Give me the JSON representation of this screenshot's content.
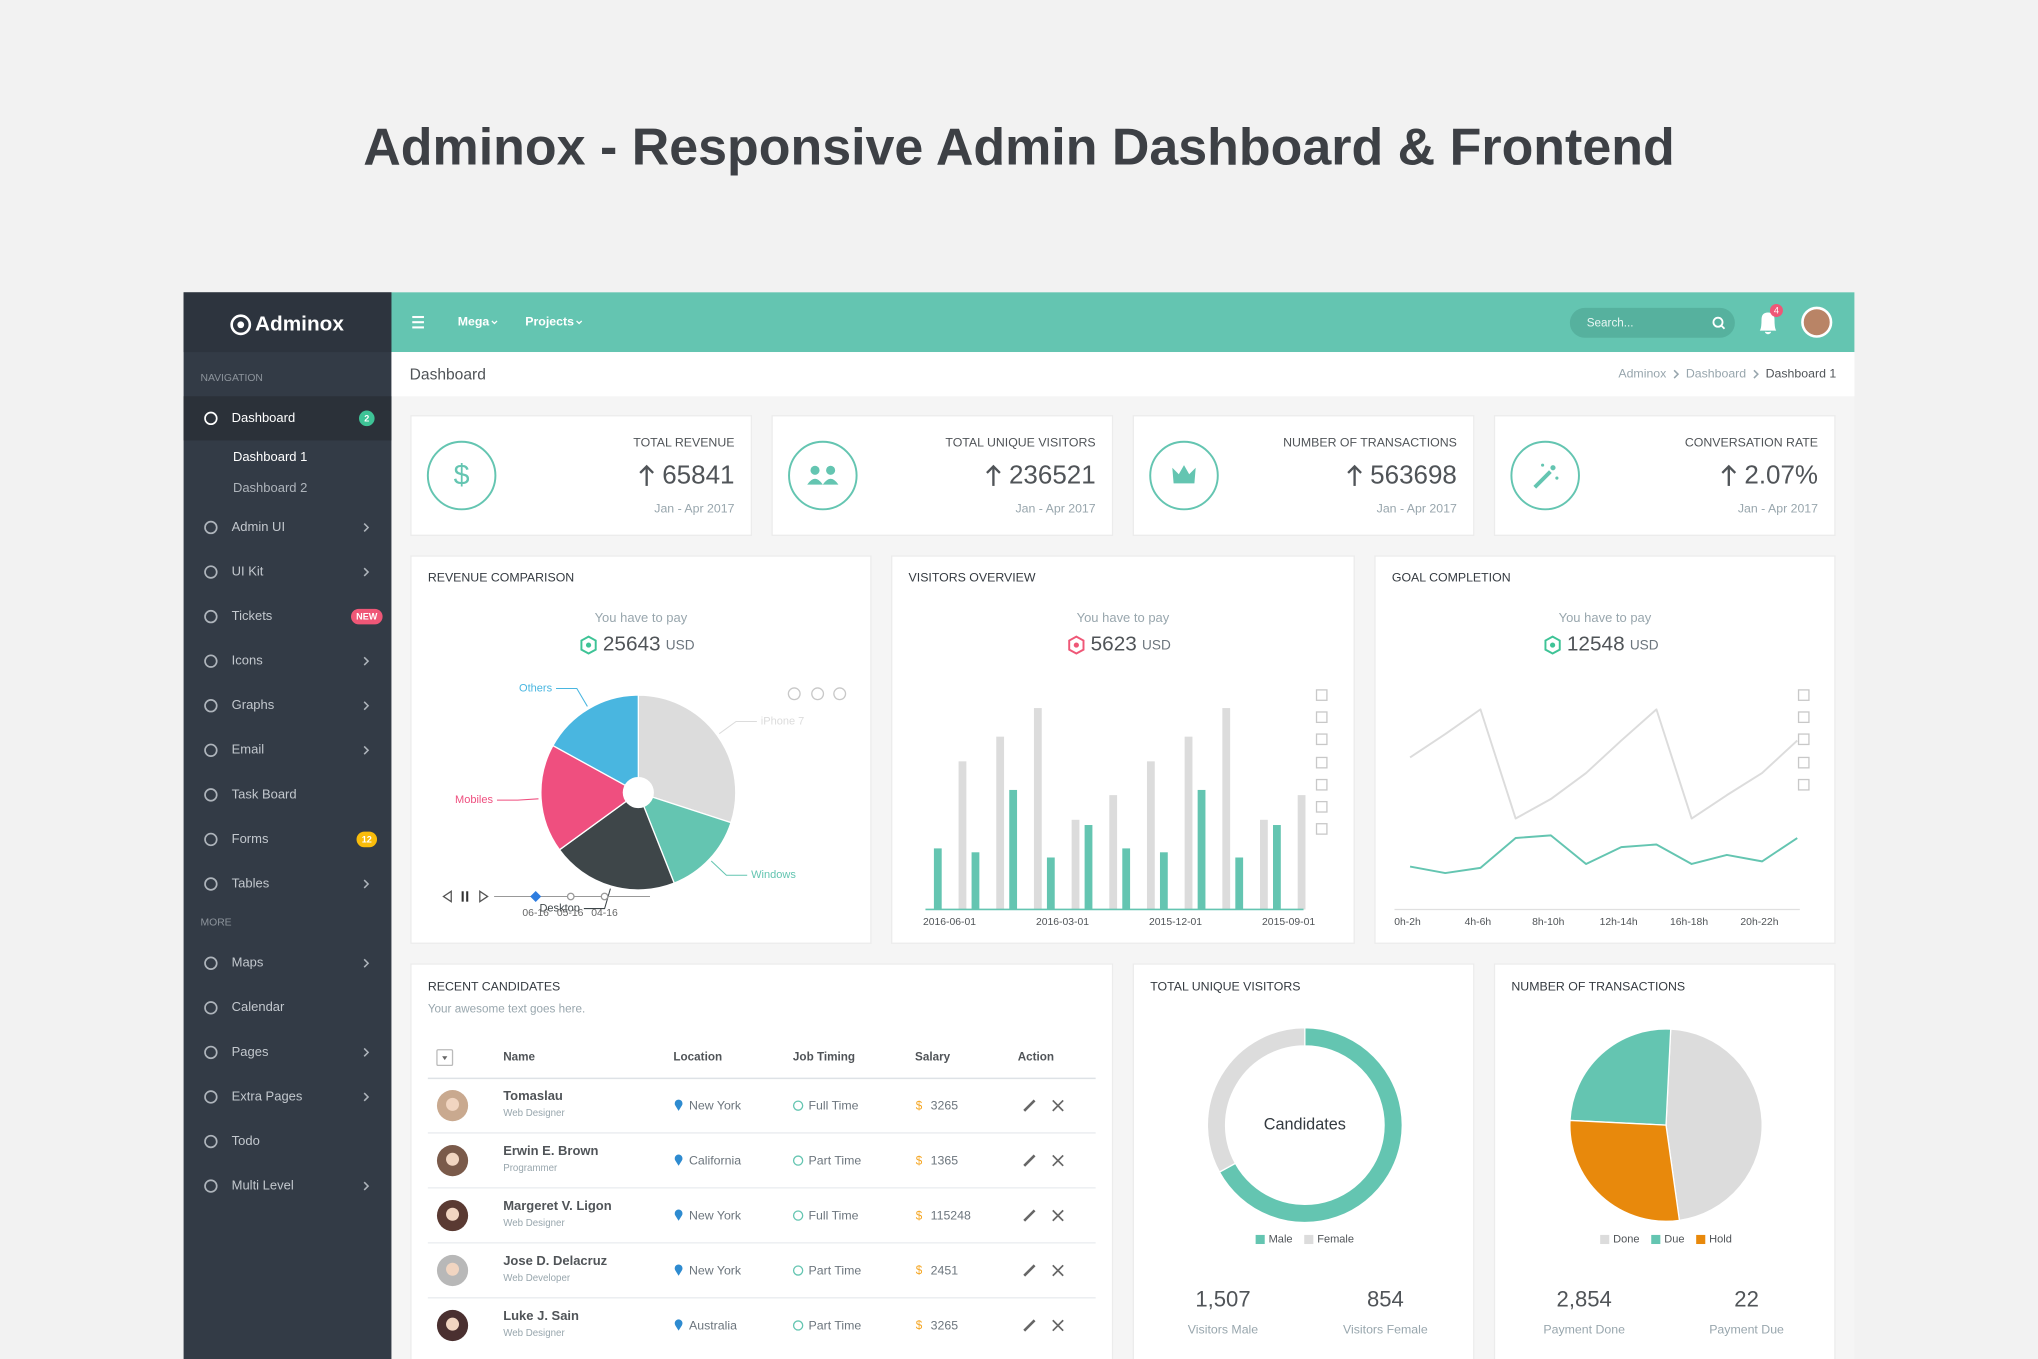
{
  "title": "Adminox - Responsive Admin Dashboard & Frontend",
  "currency_symbol": "$",
  "sidebar": {
    "brand": "Adminox",
    "sections": [
      {
        "label": "NAVIGATION",
        "items": [
          {
            "label": "Dashboard",
            "active": true,
            "badge": "2",
            "badge_color": "#3ec396",
            "children": [
              "Dashboard 1",
              "Dashboard 2"
            ]
          },
          {
            "label": "Admin UI",
            "expandable": true
          },
          {
            "label": "UI Kit",
            "expandable": true
          },
          {
            "label": "Tickets",
            "badge": "NEW",
            "badge_color": "#ef5777"
          },
          {
            "label": "Icons",
            "expandable": true
          },
          {
            "label": "Graphs",
            "expandable": true
          },
          {
            "label": "Email",
            "expandable": true
          },
          {
            "label": "Task Board"
          },
          {
            "label": "Forms",
            "badge": "12",
            "badge_color": "#f9bc0b"
          },
          {
            "label": "Tables",
            "expandable": true
          }
        ]
      },
      {
        "label": "MORE",
        "items": [
          {
            "label": "Maps",
            "expandable": true
          },
          {
            "label": "Calendar"
          },
          {
            "label": "Pages",
            "expandable": true
          },
          {
            "label": "Extra Pages",
            "expandable": true
          },
          {
            "label": "Todo"
          },
          {
            "label": "Multi Level",
            "expandable": true
          }
        ]
      }
    ]
  },
  "topbar": {
    "menus": [
      "Mega",
      "Projects"
    ],
    "search_placeholder": "Search...",
    "notification_count": "4"
  },
  "page_header": {
    "title": "Dashboard",
    "breadcrumb": [
      "Adminox",
      "Dashboard",
      "Dashboard 1"
    ]
  },
  "stat_cards": [
    {
      "title": "TOTAL REVENUE",
      "value": "65841",
      "period": "Jan - Apr 2017"
    },
    {
      "title": "TOTAL UNIQUE VISITORS",
      "value": "236521",
      "period": "Jan - Apr 2017"
    },
    {
      "title": "NUMBER OF TRANSACTIONS",
      "value": "563698",
      "period": "Jan - Apr 2017"
    },
    {
      "title": "CONVERSATION RATE",
      "value": "2.07%",
      "period": "Jan - Apr 2017"
    }
  ],
  "widgets": [
    {
      "title": "REVENUE COMPARISON",
      "note": "You have to pay",
      "amount": "25643",
      "unit": "USD",
      "status_color": "#3ec396",
      "chart": {
        "type": "pie",
        "categories": [
          "iPhone 7",
          "Windows",
          "Desktop",
          "Mobiles",
          "Others"
        ],
        "values": [
          30,
          14,
          21,
          18,
          17
        ],
        "colors": [
          "#dcdcdc",
          "#64c5b1",
          "#3e4649",
          "#ef4f7f",
          "#49b6e0"
        ]
      },
      "timeline": [
        "06-16",
        "05-16",
        "04-16"
      ]
    },
    {
      "title": "VISITORS OVERVIEW",
      "note": "You have to pay",
      "amount": "5623",
      "unit": "USD",
      "status_color": "#ef5777",
      "chart": {
        "type": "bar",
        "categories": [
          "2016-06-01",
          null,
          null,
          "2016-03-01",
          null,
          null,
          "2015-12-01",
          null,
          null,
          "2015-09-01"
        ],
        "ylim": [
          0,
          170
        ],
        "series": [
          {
            "color": "#64c5b1",
            "values": [
              47,
              44,
              92,
              40,
              65,
              47,
              44,
              92,
              40,
              65
            ]
          },
          {
            "color": "#dcdcdc",
            "values": [
              114,
              133,
              155,
              69,
              88,
              114,
              133,
              155,
              69,
              88
            ]
          }
        ]
      }
    },
    {
      "title": "GOAL COMPLETION",
      "note": "You have to pay",
      "amount": "12548",
      "unit": "USD",
      "status_color": "#3ec396",
      "chart": {
        "type": "line",
        "categories": [
          "0h-2h",
          null,
          "4h-6h",
          null,
          "8h-10h",
          null,
          "12h-14h",
          null,
          "16h-18h",
          null,
          "20h-22h",
          null
        ],
        "ylim": [
          0,
          170
        ],
        "series": [
          {
            "color": "#dcdcdc",
            "values": [
              117,
              135,
              154,
              70,
              85,
              105,
              130,
              154,
              70,
              88,
              105,
              130
            ]
          },
          {
            "color": "#64c5b1",
            "values": [
              33,
              28,
              32,
              55,
              57,
              35,
              48,
              50,
              35,
              42,
              37,
              55
            ]
          }
        ]
      }
    }
  ],
  "candidates": {
    "title": "RECENT CANDIDATES",
    "subtitle": "Your awesome text goes here.",
    "headers": [
      "Name",
      "Location",
      "Job Timing",
      "Salary",
      "Action"
    ],
    "rows": [
      [
        "Tomaslau",
        "Web Designer",
        "New York",
        "Full Time",
        "3265"
      ],
      [
        "Erwin E. Brown",
        "Programmer",
        "California",
        "Part Time",
        "1365"
      ],
      [
        "Margeret V. Ligon",
        "Web Designer",
        "New York",
        "Full Time",
        "115248"
      ],
      [
        "Jose D. Delacruz",
        "Web Developer",
        "New York",
        "Part Time",
        "2451"
      ],
      [
        "Luke J. Sain",
        "Web Designer",
        "Australia",
        "Part Time",
        "3265"
      ]
    ]
  },
  "summary_cards": [
    {
      "title": "TOTAL UNIQUE VISITORS",
      "chart": {
        "type": "donut",
        "center_label": "Candidates",
        "categories": [
          "Male",
          "Female"
        ],
        "values": [
          67,
          33
        ],
        "colors": [
          "#64c5b1",
          "#dcdcdc"
        ]
      },
      "stats": [
        {
          "value": "1,507",
          "label": "Visitors Male"
        },
        {
          "value": "854",
          "label": "Visitors Female"
        }
      ]
    },
    {
      "title": "NUMBER OF TRANSACTIONS",
      "chart": {
        "type": "pie",
        "categories": [
          "Done",
          "Due",
          "Hold"
        ],
        "values": [
          47,
          25,
          28
        ],
        "colors": [
          "#dcdcdc",
          "#64c5b1",
          "#e8890c"
        ]
      },
      "stats": [
        {
          "value": "2,854",
          "label": "Payment Done"
        },
        {
          "value": "22",
          "label": "Payment Due"
        }
      ]
    }
  ]
}
